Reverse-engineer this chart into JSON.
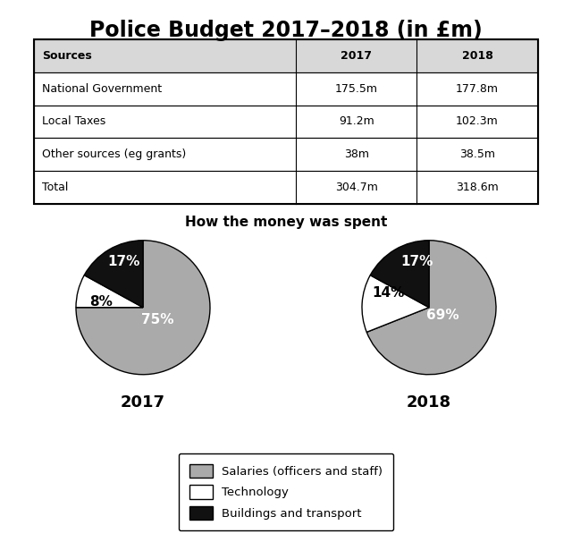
{
  "title": "Police Budget 2017–2018 (in £m)",
  "table": {
    "headers": [
      "Sources",
      "2017",
      "2018"
    ],
    "rows": [
      [
        "National Government",
        "175.5m",
        "177.8m"
      ],
      [
        "Local Taxes",
        "91.2m",
        "102.3m"
      ],
      [
        "Other sources (eg grants)",
        "38m",
        "38.5m"
      ],
      [
        "Total",
        "304.7m",
        "318.6m"
      ]
    ]
  },
  "pie_title": "How the money was spent",
  "pie_2017": {
    "label": "2017",
    "values": [
      75,
      8,
      17
    ],
    "pct_labels": [
      "75%",
      "8%",
      "17%"
    ],
    "colors": [
      "#aaaaaa",
      "#ffffff",
      "#111111"
    ],
    "startangle": 90,
    "counterclock": false
  },
  "pie_2018": {
    "label": "2018",
    "values": [
      69,
      14,
      17
    ],
    "pct_labels": [
      "69%",
      "14%",
      "17%"
    ],
    "colors": [
      "#aaaaaa",
      "#ffffff",
      "#111111"
    ],
    "startangle": 90,
    "counterclock": false
  },
  "legend_labels": [
    "Salaries (officers and staff)",
    "Technology",
    "Buildings and transport"
  ],
  "legend_colors": [
    "#aaaaaa",
    "#ffffff",
    "#111111"
  ],
  "background_color": "#ffffff",
  "title_fontsize": 17,
  "pie_label_fontsize": 11,
  "year_label_fontsize": 13,
  "table_fontsize": 9,
  "pie_title_fontsize": 11
}
